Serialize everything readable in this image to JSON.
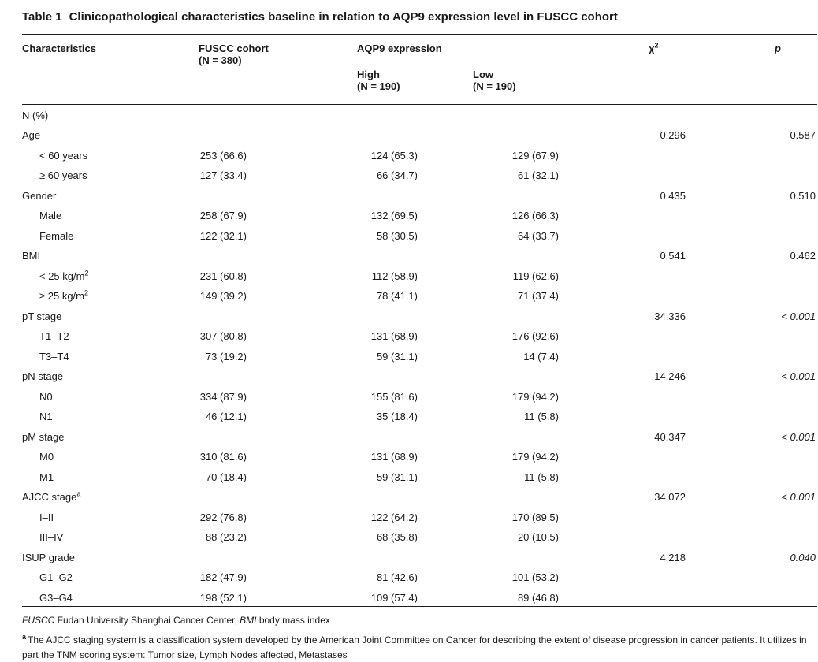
{
  "table_label": "Table 1",
  "table_title": "Clinicopathological characteristics baseline in relation to AQP9 expression level in FUSCC cohort",
  "header": {
    "characteristics": "Characteristics",
    "fuscc_line1": "FUSCC cohort",
    "fuscc_line2": "(N = 380)",
    "aqp9_group": "AQP9 expression",
    "high_line1": "High",
    "high_line2": "(N = 190)",
    "low_line1": "Low",
    "low_line2": "(N = 190)",
    "chi2_base": "χ",
    "chi2_sup": "2",
    "p_label": "p"
  },
  "rows": [
    {
      "label": "N (%)"
    },
    {
      "label": "Age",
      "chi2": "0.296",
      "p": "0.587"
    },
    {
      "label": "< 60 years",
      "indent": true,
      "fuscc": "253 (66.6)",
      "high": "124 (65.3)",
      "low": "129 (67.9)"
    },
    {
      "label": "≥ 60 years",
      "indent": true,
      "fuscc": "127 (33.4)",
      "high": "66 (34.7)",
      "low": "61 (32.1)"
    },
    {
      "label": "Gender",
      "chi2": "0.435",
      "p": "0.510"
    },
    {
      "label": "Male",
      "indent": true,
      "fuscc": "258 (67.9)",
      "high": "132 (69.5)",
      "low": "126 (66.3)"
    },
    {
      "label": "Female",
      "indent": true,
      "fuscc": "122 (32.1)",
      "high": "58 (30.5)",
      "low": "64 (33.7)"
    },
    {
      "label": "BMI",
      "chi2": "0.541",
      "p": "0.462"
    },
    {
      "label": "< 25 kg/m",
      "sup": "2",
      "indent": true,
      "fuscc": "231 (60.8)",
      "high": "112 (58.9)",
      "low": "119 (62.6)"
    },
    {
      "label": "≥ 25 kg/m",
      "sup": "2",
      "indent": true,
      "fuscc": "149 (39.2)",
      "high": "78 (41.1)",
      "low": "71 (37.4)"
    },
    {
      "label": "pT stage",
      "chi2": "34.336",
      "p": "< 0.001",
      "p_italic": true
    },
    {
      "label": "T1–T2",
      "indent": true,
      "fuscc": "307 (80.8)",
      "high": "131 (68.9)",
      "low": "176 (92.6)"
    },
    {
      "label": "T3–T4",
      "indent": true,
      "fuscc": "73 (19.2)",
      "high": "59 (31.1)",
      "low": "14 (7.4)"
    },
    {
      "label": "pN stage",
      "chi2": "14.246",
      "p": "< 0.001",
      "p_italic": true
    },
    {
      "label": "N0",
      "indent": true,
      "fuscc": "334 (87.9)",
      "high": "155 (81.6)",
      "low": "179 (94.2)"
    },
    {
      "label": "N1",
      "indent": true,
      "fuscc": "46 (12.1)",
      "high": "35 (18.4)",
      "low": "11 (5.8)"
    },
    {
      "label": "pM stage",
      "chi2": "40.347",
      "p": "< 0.001",
      "p_italic": true
    },
    {
      "label": "M0",
      "indent": true,
      "fuscc": "310 (81.6)",
      "high": "131 (68.9)",
      "low": "179 (94.2)"
    },
    {
      "label": "M1",
      "indent": true,
      "fuscc": "70 (18.4)",
      "high": "59 (31.1)",
      "low": "11 (5.8)"
    },
    {
      "label": "AJCC stage",
      "sup": "a",
      "chi2": "34.072",
      "p": "< 0.001",
      "p_italic": true
    },
    {
      "label": "I–II",
      "indent": true,
      "fuscc": "292 (76.8)",
      "high": "122 (64.2)",
      "low": "170 (89.5)"
    },
    {
      "label": "III–IV",
      "indent": true,
      "fuscc": "88 (23.2)",
      "high": "68 (35.8)",
      "low": "20 (10.5)"
    },
    {
      "label": "ISUP grade",
      "chi2": "4.218",
      "p": "0.040",
      "p_italic": true
    },
    {
      "label": "G1–G2",
      "indent": true,
      "fuscc": "182 (47.9)",
      "high": "81 (42.6)",
      "low": "101 (53.2)"
    },
    {
      "label": "G3–G4",
      "indent": true,
      "fuscc": "198 (52.1)",
      "high": "109 (57.4)",
      "low": "89 (46.8)"
    }
  ],
  "footnotes": {
    "fn1_term1": "FUSCC",
    "fn1_text1": " Fudan University Shanghai Cancer Center, ",
    "fn1_term2": "BMI",
    "fn1_text2": " body mass index",
    "fn2_sup": "a",
    "fn2_text": "The AJCC staging system is a classification system developed by the American Joint Committee on Cancer for describing the extent of disease progression in cancer patients. It utilizes in part the TNM scoring system: Tumor size, Lymph Nodes affected, Metastases"
  },
  "colors": {
    "text": "#1a1a1a",
    "rule_heavy": "#1c1c1c",
    "rule_light": "#777777"
  }
}
